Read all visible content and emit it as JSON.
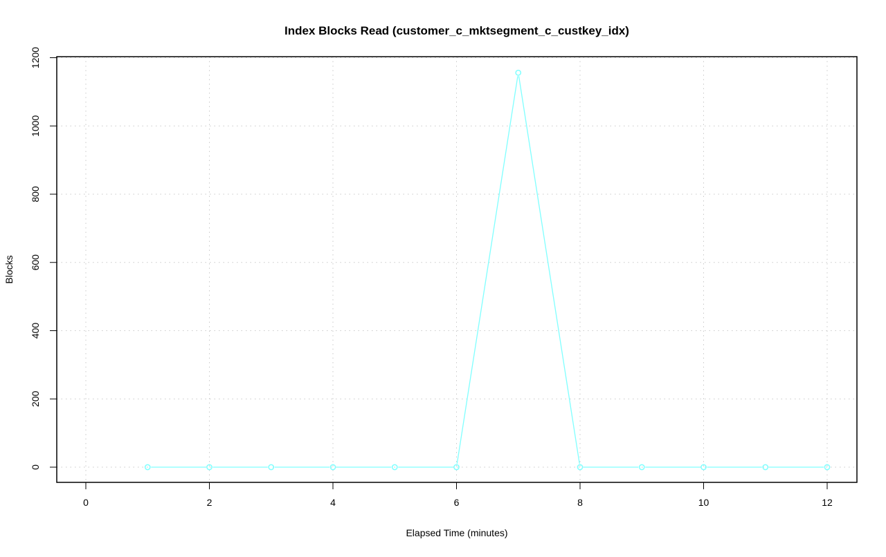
{
  "chart_data": {
    "type": "line",
    "title": "Index Blocks Read (customer_c_mktsegment_c_custkey_idx)",
    "xlabel": "Elapsed Time (minutes)",
    "ylabel": "Blocks",
    "xlim": [
      -0.5,
      12.5
    ],
    "ylim": [
      -45,
      1200
    ],
    "xticks": [
      0,
      2,
      4,
      6,
      8,
      10,
      12
    ],
    "yticks": [
      0,
      200,
      400,
      600,
      800,
      1000,
      1200
    ],
    "grid": true,
    "series": [
      {
        "color": "#80ffff",
        "marker": "open-circle",
        "x": [
          1,
          2,
          3,
          4,
          5,
          6,
          7,
          8,
          9,
          10,
          11,
          12
        ],
        "y": [
          0,
          0,
          0,
          0,
          0,
          0,
          1156,
          0,
          0,
          0,
          0,
          0
        ]
      }
    ]
  }
}
